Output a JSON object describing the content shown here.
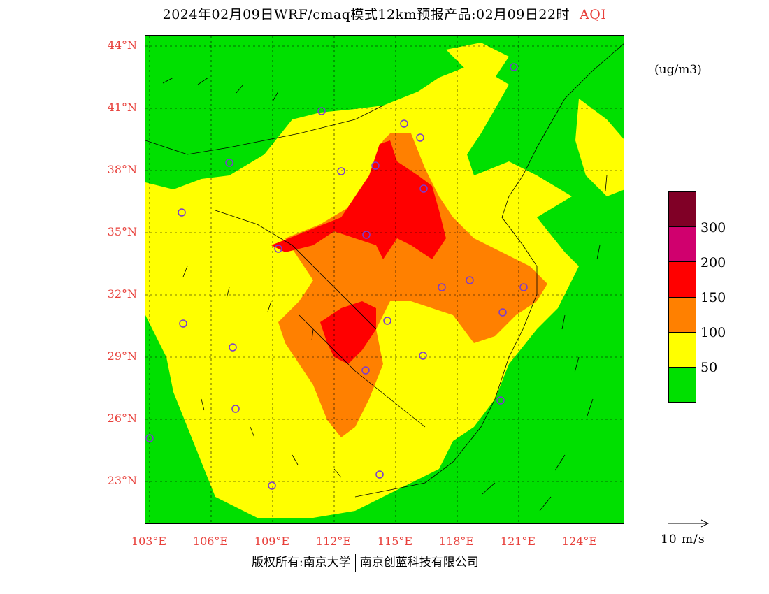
{
  "title": {
    "main": "2024年02月09日WRF/cmaq模式12km预报产品:02月09日22时",
    "variable": "AQI"
  },
  "unit": "(ug/m3)",
  "latitude_labels": [
    "44°N",
    "41°N",
    "38°N",
    "35°N",
    "32°N",
    "29°N",
    "26°N",
    "23°N"
  ],
  "longitude_labels": [
    "103°E",
    "106°E",
    "109°E",
    "112°E",
    "115°E",
    "118°E",
    "121°E",
    "124°E"
  ],
  "legend": {
    "ticks": [
      "300",
      "200",
      "150",
      "100",
      "50"
    ],
    "colors": [
      "#800026",
      "#d0006e",
      "#ff0000",
      "#ff8000",
      "#ffff00",
      "#00e000"
    ]
  },
  "wind_reference": "10 m/s",
  "copyright": {
    "left": "版权所有:南京大学",
    "right": "南京创蓝科技有限公司"
  }
}
